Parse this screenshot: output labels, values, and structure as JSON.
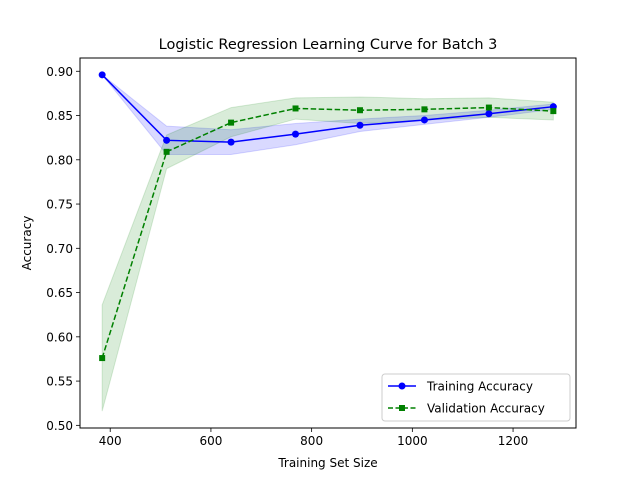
{
  "chart_data": {
    "type": "line",
    "title": "Logistic Regression Learning Curve for Batch 3",
    "xlabel": "Training Set Size",
    "ylabel": "Accuracy",
    "xlim": [
      340,
      1325
    ],
    "ylim": [
      0.497,
      0.915
    ],
    "xticks": [
      400,
      600,
      800,
      1000,
      1200
    ],
    "yticks": [
      0.5,
      0.55,
      0.6,
      0.65,
      0.7,
      0.75,
      0.8,
      0.85,
      0.9
    ],
    "x": [
      384,
      512,
      640,
      768,
      896,
      1024,
      1152,
      1280
    ],
    "legend_position": "lower-right",
    "series": [
      {
        "name": "Training Accuracy",
        "color": "#0000ff",
        "linestyle": "solid",
        "marker": "circle",
        "values": [
          0.896,
          0.822,
          0.82,
          0.829,
          0.839,
          0.845,
          0.852,
          0.86
        ],
        "band_low": [
          0.896,
          0.806,
          0.806,
          0.817,
          0.832,
          0.84,
          0.848,
          0.857
        ],
        "band_high": [
          0.896,
          0.838,
          0.834,
          0.841,
          0.846,
          0.85,
          0.856,
          0.863
        ]
      },
      {
        "name": "Validation Accuracy",
        "color": "#008000",
        "linestyle": "dashed",
        "marker": "square",
        "values": [
          0.576,
          0.809,
          0.842,
          0.858,
          0.856,
          0.857,
          0.859,
          0.855
        ],
        "band_low": [
          0.516,
          0.79,
          0.826,
          0.846,
          0.841,
          0.845,
          0.848,
          0.845
        ],
        "band_high": [
          0.636,
          0.828,
          0.859,
          0.87,
          0.871,
          0.869,
          0.87,
          0.865
        ]
      }
    ]
  }
}
